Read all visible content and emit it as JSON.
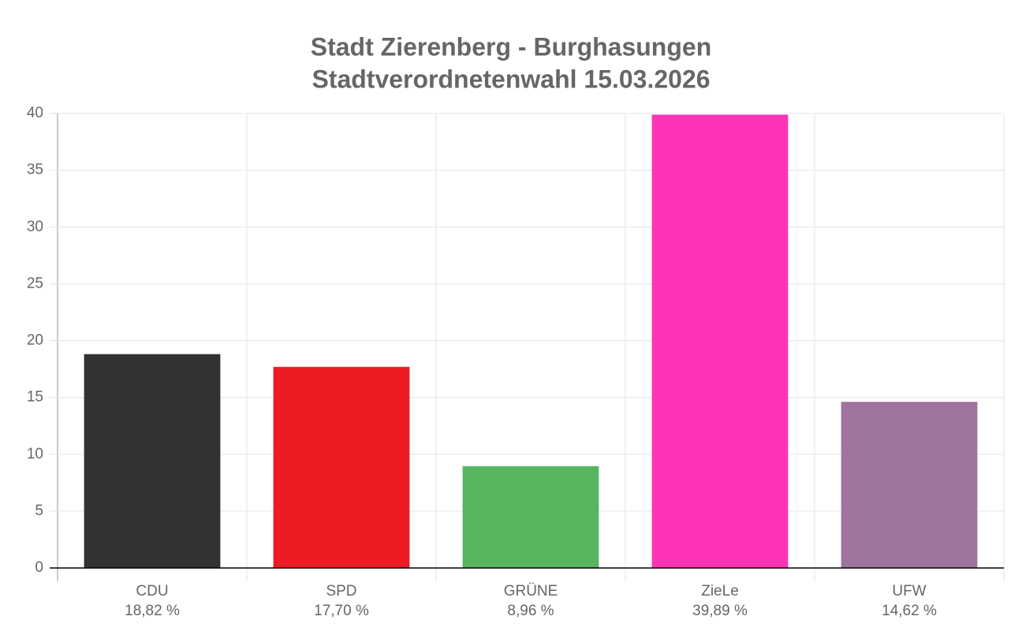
{
  "chart_data": {
    "type": "bar",
    "title": "Stadt Zierenberg - Burghasungen",
    "subtitle": "Stadtverordnetenwahl 15.03.2026",
    "categories": [
      "CDU",
      "SPD",
      "GRÜNE",
      "ZieLe",
      "UFW"
    ],
    "values": [
      18.82,
      17.7,
      8.96,
      39.89,
      14.62
    ],
    "value_labels": [
      "18,82 %",
      "17,70 %",
      "8,96 %",
      "39,89 %",
      "14,62 %"
    ],
    "colors": [
      "#333132",
      "#ed1c24",
      "#57b560",
      "#ff33b5",
      "#9e739c"
    ],
    "ylim": [
      0,
      40
    ],
    "yticks": [
      0,
      5,
      10,
      15,
      20,
      25,
      30,
      35,
      40
    ],
    "grid": true
  }
}
